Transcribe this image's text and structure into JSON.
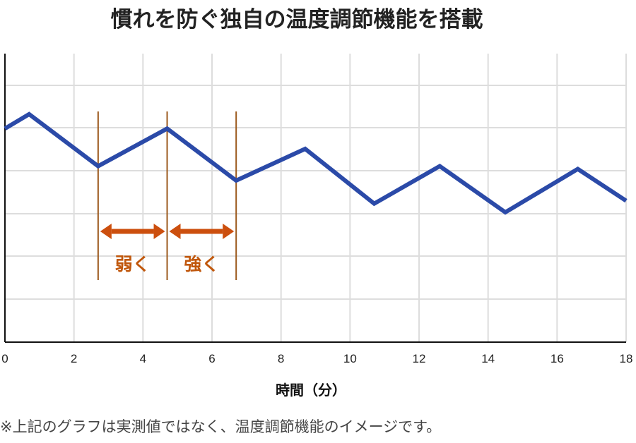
{
  "chart_data": {
    "type": "line",
    "title": "慣れを防ぐ独自の温度調節機能を搭載",
    "xlabel": "時間（分）",
    "ylabel": "",
    "xlim": [
      0,
      18
    ],
    "ylim": [
      0,
      10
    ],
    "x_ticks": [
      "0",
      "2",
      "4",
      "6",
      "8",
      "10",
      "12",
      "14",
      "16",
      "18"
    ],
    "grid": true,
    "series": [
      {
        "x": [
          0,
          0.7,
          2.7,
          4.7,
          6.7,
          8.7,
          10.7,
          12.6,
          14.5,
          16.6,
          18
        ],
        "y": [
          7.4,
          7.9,
          6.1,
          7.4,
          5.6,
          6.7,
          4.8,
          6.1,
          4.5,
          6.0,
          4.9
        ]
      }
    ],
    "annotations": [
      {
        "label": "弱く",
        "x_start": 2.7,
        "x_end": 4.7
      },
      {
        "label": "強く",
        "x_start": 4.7,
        "x_end": 6.7
      }
    ],
    "colors": {
      "line": "#2b4aa8",
      "annotation_arrow": "#cc4f0e",
      "annotation_text": "#c0570c",
      "annotation_guide": "#9c5a1e",
      "grid": "#dddddd"
    }
  },
  "footnote": "※上記のグラフは実測値ではなく、温度調節機能のイメージです。"
}
